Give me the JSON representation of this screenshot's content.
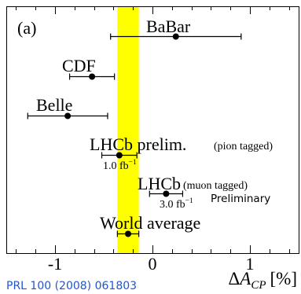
{
  "chart_data": {
    "type": "scatter",
    "panel_label": "(a)",
    "xlabel": {
      "prefix": "Δ",
      "symbol": "A",
      "subscript": "CP",
      "unit": "[%]"
    },
    "xlim": [
      -1.5,
      1.5
    ],
    "xticks": [
      -1,
      0,
      1
    ],
    "xtick_labels": [
      "-1",
      "0",
      "1"
    ],
    "grid": false,
    "band": {
      "center": -0.25,
      "error": 0.11
    },
    "points": [
      {
        "label": "BaBar",
        "value": 0.24,
        "error": 0.67
      },
      {
        "label": "CDF",
        "value": -0.62,
        "error": 0.23
      },
      {
        "label": "Belle",
        "value": -0.87,
        "error": 0.41
      },
      {
        "label": "LHCb prelim.",
        "note": "(pion tagged)",
        "lumi": "1.0 fb",
        "lumi_exp": "−1",
        "value": -0.34,
        "error": 0.18
      },
      {
        "label": "LHCb",
        "note": "(muon tagged)",
        "lumi": "3.0 fb",
        "lumi_exp": "−1",
        "value": 0.14,
        "error": 0.17
      },
      {
        "label": "World average",
        "value": -0.25,
        "error": 0.11
      }
    ],
    "annotations": [
      "Preliminary"
    ],
    "source": "PRL 100 (2008) 061803",
    "colors": {
      "band": "#ffff00",
      "markers": "#000000",
      "source_text": "#2255cc"
    }
  }
}
